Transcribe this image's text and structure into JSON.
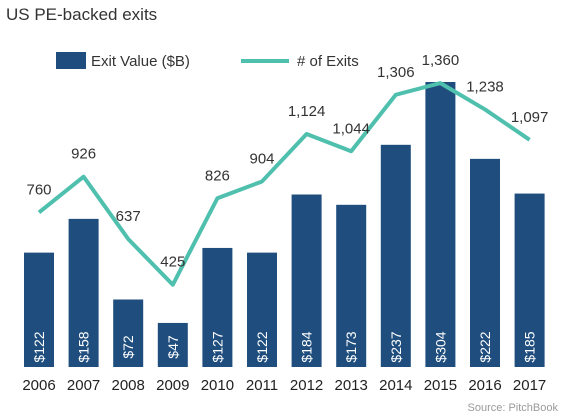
{
  "title": "US PE-backed exits",
  "source": "Source: PitchBook",
  "colors": {
    "bar": "#1f4e7e",
    "line": "#4fc0ad",
    "bar_text": "#ffffff"
  },
  "chart_data": {
    "type": "bar",
    "title": "US PE-backed exits",
    "categories": [
      "2006",
      "2007",
      "2008",
      "2009",
      "2010",
      "2011",
      "2012",
      "2013",
      "2014",
      "2015",
      "2016",
      "2017"
    ],
    "series": [
      {
        "name": "Exit Value ($B)",
        "type": "bar",
        "values": [
          122,
          158,
          72,
          47,
          127,
          122,
          184,
          173,
          237,
          304,
          222,
          185
        ],
        "labels": [
          "$122",
          "$158",
          "$72",
          "$47",
          "$127",
          "$122",
          "$184",
          "$173",
          "$237",
          "$304",
          "$222",
          "$185"
        ]
      },
      {
        "name": "# of Exits",
        "type": "line",
        "values": [
          760,
          926,
          637,
          425,
          826,
          904,
          1124,
          1044,
          1306,
          1360,
          1238,
          1097
        ],
        "labels": [
          "760",
          "926",
          "637",
          "425",
          "826",
          "904",
          "1,124",
          "1,044",
          "1,306",
          "1,360",
          "1,238",
          "1,097"
        ]
      }
    ],
    "legend": "top-left",
    "grid": false
  }
}
